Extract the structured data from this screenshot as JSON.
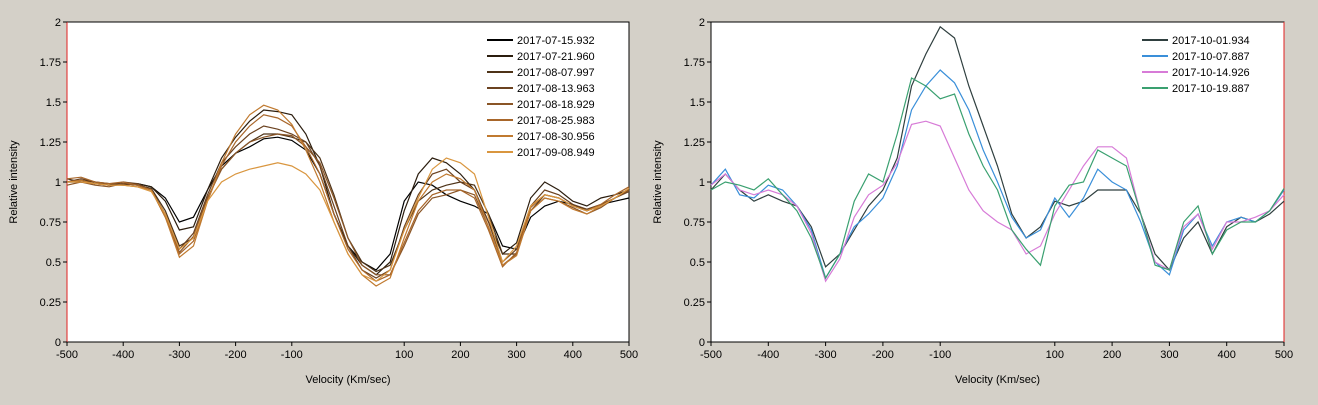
{
  "chart_data": [
    {
      "type": "line",
      "xlabel": "Velocity (Km/sec)",
      "ylabel": "Relative intensity",
      "x": [
        -500,
        -475,
        -450,
        -425,
        -400,
        -375,
        -350,
        -325,
        -300,
        -275,
        -250,
        -225,
        -200,
        -175,
        -150,
        -125,
        -100,
        -75,
        -50,
        -25,
        0,
        25,
        50,
        75,
        100,
        125,
        150,
        175,
        200,
        225,
        250,
        275,
        300,
        325,
        350,
        375,
        400,
        425,
        450,
        475,
        500
      ],
      "xlim": [
        -500,
        500
      ],
      "xticks": [
        -500,
        -400,
        -300,
        -200,
        -100,
        100,
        200,
        300,
        400,
        500
      ],
      "ylim": [
        0,
        2
      ],
      "yticks": [
        0,
        0.25,
        0.5,
        0.75,
        1,
        1.25,
        1.5,
        1.75,
        2
      ],
      "grid": false,
      "legend": "upper right",
      "series": [
        {
          "name": "2017-07-15.932",
          "color": "#000000",
          "values": [
            1.0,
            1.0,
            0.99,
            0.98,
            0.99,
            0.99,
            0.97,
            0.9,
            0.75,
            0.78,
            0.95,
            1.1,
            1.18,
            1.22,
            1.27,
            1.28,
            1.26,
            1.2,
            1.05,
            0.8,
            0.6,
            0.5,
            0.45,
            0.55,
            0.88,
            1.0,
            0.98,
            0.92,
            0.88,
            0.85,
            0.8,
            0.6,
            0.58,
            0.78,
            0.85,
            0.88,
            0.86,
            0.82,
            0.86,
            0.88,
            0.9
          ]
        },
        {
          "name": "2017-07-21.960",
          "color": "#2b1d0e",
          "values": [
            1.0,
            1.01,
            1.0,
            0.99,
            0.98,
            0.99,
            0.97,
            0.88,
            0.7,
            0.72,
            0.95,
            1.15,
            1.28,
            1.38,
            1.45,
            1.44,
            1.42,
            1.3,
            1.1,
            0.8,
            0.6,
            0.48,
            0.42,
            0.5,
            0.82,
            1.05,
            1.15,
            1.12,
            1.05,
            0.95,
            0.75,
            0.55,
            0.62,
            0.9,
            1.0,
            0.95,
            0.88,
            0.85,
            0.9,
            0.92,
            0.95
          ]
        },
        {
          "name": "2017-08-07.997",
          "color": "#4e3318",
          "values": [
            1.02,
            1.0,
            0.99,
            0.98,
            0.99,
            0.98,
            0.96,
            0.82,
            0.6,
            0.65,
            0.9,
            1.08,
            1.18,
            1.25,
            1.3,
            1.3,
            1.28,
            1.25,
            1.15,
            0.92,
            0.65,
            0.5,
            0.44,
            0.48,
            0.7,
            0.88,
            0.95,
            0.98,
            1.0,
            0.98,
            0.8,
            0.55,
            0.55,
            0.82,
            0.92,
            0.9,
            0.85,
            0.82,
            0.85,
            0.9,
            0.95
          ]
        },
        {
          "name": "2017-08-13.963",
          "color": "#6b4220",
          "values": [
            1.0,
            1.02,
            1.0,
            0.98,
            1.0,
            0.99,
            0.95,
            0.8,
            0.58,
            0.68,
            0.92,
            1.12,
            1.22,
            1.3,
            1.35,
            1.33,
            1.3,
            1.25,
            1.1,
            0.85,
            0.6,
            0.45,
            0.4,
            0.45,
            0.72,
            0.92,
            1.05,
            1.08,
            1.0,
            0.95,
            0.75,
            0.5,
            0.58,
            0.85,
            0.95,
            0.92,
            0.86,
            0.83,
            0.86,
            0.9,
            0.94
          ]
        },
        {
          "name": "2017-08-18.929",
          "color": "#8a5526",
          "values": [
            0.98,
            1.0,
            0.98,
            0.97,
            0.99,
            0.98,
            0.95,
            0.78,
            0.56,
            0.66,
            0.9,
            1.08,
            1.18,
            1.25,
            1.28,
            1.3,
            1.29,
            1.22,
            1.12,
            0.9,
            0.65,
            0.48,
            0.42,
            0.42,
            0.6,
            0.8,
            0.9,
            0.92,
            0.95,
            0.92,
            0.72,
            0.48,
            0.55,
            0.82,
            0.9,
            0.88,
            0.84,
            0.8,
            0.84,
            0.9,
            0.95
          ]
        },
        {
          "name": "2017-08-25.983",
          "color": "#a8662a",
          "values": [
            1.02,
            1.03,
            1.0,
            0.99,
            1.0,
            0.98,
            0.95,
            0.78,
            0.55,
            0.63,
            0.88,
            1.1,
            1.25,
            1.35,
            1.42,
            1.4,
            1.35,
            1.22,
            1.05,
            0.8,
            0.58,
            0.45,
            0.38,
            0.42,
            0.62,
            0.82,
            0.92,
            0.95,
            0.95,
            0.9,
            0.7,
            0.47,
            0.56,
            0.84,
            0.92,
            0.9,
            0.85,
            0.82,
            0.86,
            0.92,
            0.97
          ]
        },
        {
          "name": "2017-08-30.956",
          "color": "#c07a30",
          "values": [
            1.0,
            1.01,
            0.99,
            0.98,
            0.98,
            0.97,
            0.95,
            0.78,
            0.53,
            0.6,
            0.88,
            1.12,
            1.3,
            1.42,
            1.48,
            1.45,
            1.36,
            1.2,
            1.0,
            0.75,
            0.55,
            0.42,
            0.35,
            0.4,
            0.65,
            0.88,
            1.0,
            1.05,
            1.02,
            0.95,
            0.72,
            0.48,
            0.54,
            0.82,
            0.9,
            0.88,
            0.83,
            0.8,
            0.85,
            0.9,
            0.96
          ]
        },
        {
          "name": "2017-09-08.949",
          "color": "#d9963f",
          "values": [
            1.0,
            1.0,
            0.99,
            0.98,
            0.98,
            0.97,
            0.94,
            0.8,
            0.58,
            0.65,
            0.88,
            1.0,
            1.05,
            1.08,
            1.1,
            1.12,
            1.1,
            1.05,
            0.95,
            0.75,
            0.55,
            0.42,
            0.38,
            0.45,
            0.7,
            0.9,
            1.08,
            1.15,
            1.12,
            1.05,
            0.78,
            0.5,
            0.6,
            0.85,
            0.92,
            0.9,
            0.85,
            0.82,
            0.85,
            0.9,
            0.96
          ]
        }
      ]
    },
    {
      "type": "line",
      "xlabel": "Velocity (Km/sec)",
      "ylabel": "Relative intensity",
      "x": [
        -500,
        -475,
        -450,
        -425,
        -400,
        -375,
        -350,
        -325,
        -300,
        -275,
        -250,
        -225,
        -200,
        -175,
        -150,
        -125,
        -100,
        -75,
        -50,
        -25,
        0,
        25,
        50,
        75,
        100,
        125,
        150,
        175,
        200,
        225,
        250,
        275,
        300,
        325,
        350,
        375,
        400,
        425,
        450,
        475,
        500
      ],
      "xlim": [
        -500,
        500
      ],
      "xticks": [
        -500,
        -400,
        -300,
        -200,
        -100,
        100,
        200,
        300,
        400,
        500
      ],
      "ylim": [
        0,
        2
      ],
      "yticks": [
        0,
        0.25,
        0.5,
        0.75,
        1,
        1.25,
        1.5,
        1.75,
        2
      ],
      "grid": false,
      "legend": "upper right",
      "series": [
        {
          "name": "2017-10-01.934",
          "color": "#2f3f3f",
          "values": [
            0.95,
            1.05,
            0.95,
            0.88,
            0.92,
            0.88,
            0.85,
            0.72,
            0.47,
            0.55,
            0.7,
            0.85,
            0.95,
            1.15,
            1.6,
            1.8,
            1.97,
            1.9,
            1.6,
            1.35,
            1.1,
            0.8,
            0.65,
            0.72,
            0.88,
            0.85,
            0.88,
            0.95,
            0.95,
            0.95,
            0.8,
            0.55,
            0.45,
            0.65,
            0.75,
            0.55,
            0.72,
            0.78,
            0.75,
            0.8,
            0.88
          ]
        },
        {
          "name": "2017-10-07.887",
          "color": "#3a8fd9",
          "values": [
            0.98,
            1.08,
            0.92,
            0.9,
            0.98,
            0.95,
            0.85,
            0.7,
            0.4,
            0.55,
            0.72,
            0.8,
            0.9,
            1.1,
            1.45,
            1.6,
            1.7,
            1.62,
            1.45,
            1.2,
            1.0,
            0.78,
            0.65,
            0.7,
            0.9,
            0.78,
            0.9,
            1.08,
            1.0,
            0.95,
            0.75,
            0.5,
            0.42,
            0.7,
            0.8,
            0.6,
            0.75,
            0.78,
            0.75,
            0.82,
            0.95
          ]
        },
        {
          "name": "2017-10-14.926",
          "color": "#d77bd7",
          "values": [
            0.98,
            1.05,
            0.95,
            0.92,
            0.95,
            0.92,
            0.85,
            0.68,
            0.38,
            0.52,
            0.78,
            0.92,
            0.98,
            1.12,
            1.36,
            1.38,
            1.35,
            1.15,
            0.95,
            0.82,
            0.75,
            0.7,
            0.55,
            0.6,
            0.8,
            0.95,
            1.1,
            1.22,
            1.22,
            1.15,
            0.8,
            0.5,
            0.45,
            0.72,
            0.8,
            0.58,
            0.75,
            0.75,
            0.78,
            0.82,
            0.92
          ]
        },
        {
          "name": "2017-10-19.887",
          "color": "#3aa070",
          "values": [
            0.95,
            1.0,
            0.98,
            0.95,
            1.02,
            0.92,
            0.82,
            0.65,
            0.4,
            0.55,
            0.88,
            1.05,
            1.0,
            1.3,
            1.65,
            1.6,
            1.52,
            1.55,
            1.3,
            1.1,
            0.95,
            0.7,
            0.58,
            0.48,
            0.85,
            0.98,
            1.0,
            1.2,
            1.15,
            1.1,
            0.8,
            0.48,
            0.45,
            0.75,
            0.85,
            0.55,
            0.7,
            0.75,
            0.75,
            0.82,
            0.96
          ]
        }
      ]
    }
  ]
}
